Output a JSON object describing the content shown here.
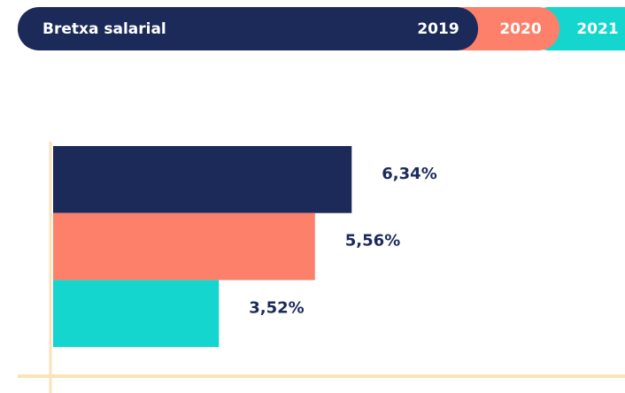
{
  "chart_data": {
    "type": "hbar",
    "title": "Bretxa salarial",
    "categories": [
      "2019",
      "2020",
      "2021"
    ],
    "values": [
      6.34,
      5.56,
      3.52
    ],
    "value_labels": [
      "6,34%",
      "5,56%",
      "3,52%"
    ],
    "colors": [
      "#1c2a5a",
      "#fd806a",
      "#14d6cf"
    ]
  }
}
